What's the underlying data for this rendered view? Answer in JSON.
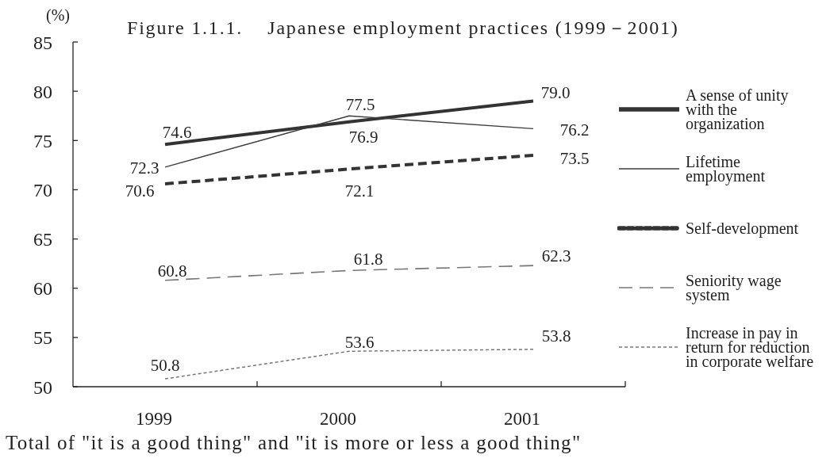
{
  "chart_data": {
    "type": "line",
    "title": "Figure 1.1.1.    Japanese employment practices (1999－2001)",
    "ylabel": "(%)",
    "annotations": [
      "Total of \"it is a good thing\" and \"it is more or less a good thing\""
    ],
    "categories": [
      "1999",
      "2000",
      "2001"
    ],
    "series": [
      {
        "name": "A sense of unity with the organization",
        "color": "#333333",
        "line_style": "solid",
        "values": [
          74.6,
          76.9,
          79.0
        ],
        "value_labels": [
          "74.6",
          "76.9",
          "79.0"
        ]
      },
      {
        "name": "Lifetime employment",
        "color": "#3c3c3c",
        "line_style": "solid",
        "values": [
          72.3,
          77.5,
          76.2
        ],
        "value_labels": [
          "72.3",
          "77.5",
          "76.2"
        ]
      },
      {
        "name": "Self-development",
        "color": "#333333",
        "line_style": "dashed",
        "values": [
          70.6,
          72.1,
          73.5
        ],
        "value_labels": [
          "70.6",
          "72.1",
          "73.5"
        ]
      },
      {
        "name": "Seniority wage system",
        "color": "#777777",
        "line_style": "dashed",
        "values": [
          60.8,
          61.8,
          62.3
        ],
        "value_labels": [
          "60.8",
          "61.8",
          "62.3"
        ]
      },
      {
        "name": "Increase in pay in return for reduction in corporate welfare",
        "color": "#777777",
        "line_style": "dotted",
        "values": [
          50.8,
          53.6,
          53.8
        ],
        "value_labels": [
          "50.8",
          "53.6",
          "53.8"
        ]
      }
    ],
    "ylim": [
      50,
      85
    ],
    "yticks": [
      50,
      55,
      60,
      65,
      70,
      75,
      80,
      85
    ],
    "legend": "right",
    "marker": "none"
  }
}
